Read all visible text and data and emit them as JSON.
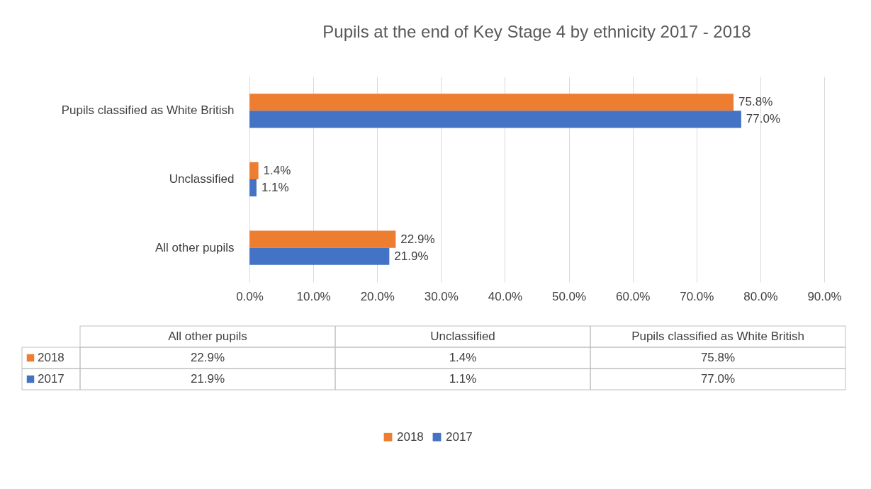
{
  "chart_data": {
    "type": "bar",
    "orientation": "horizontal",
    "title": "Pupils at the end of Key Stage 4 by ethnicity 2017 - 2018",
    "categories": [
      "Pupils classified as White British",
      "Unclassified",
      "All other pupils"
    ],
    "series": [
      {
        "name": "2018",
        "color": "#ed7d31",
        "values": [
          75.8,
          1.4,
          22.9
        ],
        "value_labels": [
          "75.8%",
          "1.4%",
          "22.9%"
        ]
      },
      {
        "name": "2017",
        "color": "#4472c4",
        "values": [
          77.0,
          1.1,
          21.9
        ],
        "value_labels": [
          "77.0%",
          "1.1%",
          "21.9%"
        ]
      }
    ],
    "xlim": [
      0,
      90
    ],
    "xticks": [
      {
        "value": 0,
        "label": "0.0%"
      },
      {
        "value": 10,
        "label": "10.0%"
      },
      {
        "value": 20,
        "label": "20.0%"
      },
      {
        "value": 30,
        "label": "30.0%"
      },
      {
        "value": 40,
        "label": "40.0%"
      },
      {
        "value": 50,
        "label": "50.0%"
      },
      {
        "value": 60,
        "label": "60.0%"
      },
      {
        "value": 70,
        "label": "70.0%"
      },
      {
        "value": 80,
        "label": "80.0%"
      },
      {
        "value": 90,
        "label": "90.0%"
      }
    ],
    "grid": "x",
    "legend": "bottom"
  }
}
